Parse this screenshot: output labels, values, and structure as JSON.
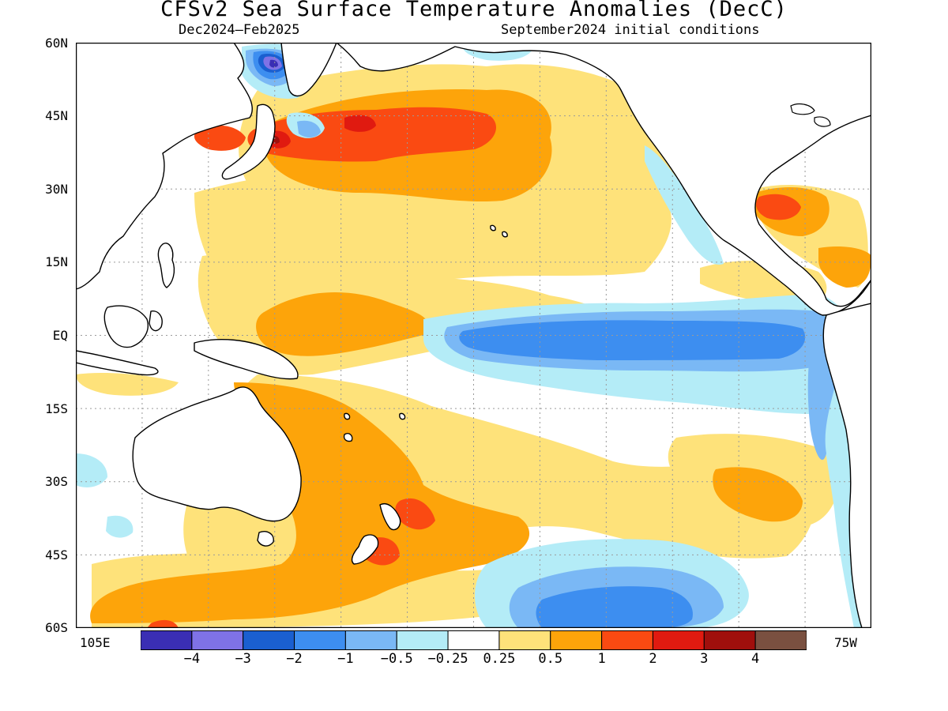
{
  "title": "CFSv2 Sea Surface Temperature Anomalies (DecC)",
  "subtitle_left": "Dec2024–Feb2025",
  "subtitle_right": "September2024 initial conditions",
  "lat_labels": [
    "60N",
    "45N",
    "30N",
    "15N",
    "EQ",
    "15S",
    "30S",
    "45S",
    "60S"
  ],
  "lon_labels": {
    "west": "105E",
    "east": "75W"
  },
  "colorbar": {
    "colors": [
      "#3a2eb4",
      "#7f72e6",
      "#1a5fd0",
      "#3d8ef0",
      "#7ab8f5",
      "#b4ecf7",
      "#ffffff",
      "#fee27a",
      "#fda40a",
      "#fa4a12",
      "#e01a10",
      "#a00f0c",
      "#7a5040"
    ],
    "labels": [
      "-4",
      "-3",
      "-2",
      "-1",
      "-0.5",
      "-0.25",
      "0.25",
      "0.5",
      "1",
      "2",
      "3",
      "4"
    ]
  },
  "palette": {
    "land_outline": "#000000",
    "grid": "#9a9a9a",
    "neutral": "#ffffff"
  }
}
